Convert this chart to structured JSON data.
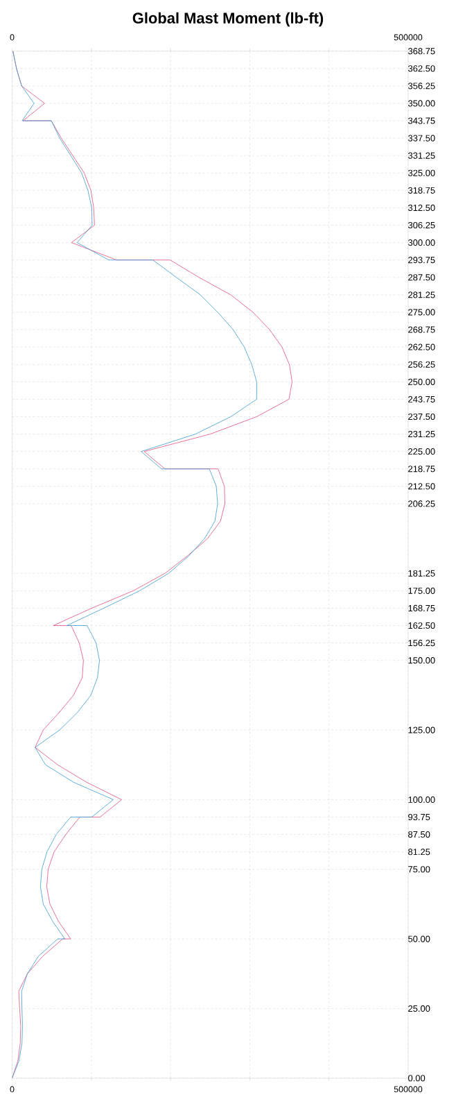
{
  "chart_data": {
    "type": "line",
    "title": "Global Mast Moment (lb-ft)",
    "xlim": [
      0,
      500000
    ],
    "xticks": [
      0,
      {
        "value": 100000,
        "label": null
      },
      {
        "value": 200000,
        "label": null
      },
      {
        "value": 300000,
        "label": null
      },
      {
        "value": 400000,
        "label": null
      },
      500000
    ],
    "x2lim": [
      0,
      500000
    ],
    "x2ticks": [
      0,
      {
        "value": 100000,
        "label": null
      },
      {
        "value": 200000,
        "label": null
      },
      {
        "value": 300000,
        "label": null
      },
      {
        "value": 400000,
        "label": null
      },
      500000
    ],
    "ylim": [
      0,
      368.75
    ],
    "yticks": [
      {
        "value": 368.75,
        "label": "368.75"
      },
      {
        "value": 362.5,
        "label": "362.50"
      },
      {
        "value": 356.25,
        "label": "356.25"
      },
      {
        "value": 350,
        "label": "350.00"
      },
      {
        "value": 343.75,
        "label": "343.75"
      },
      {
        "value": 337.5,
        "label": "337.50"
      },
      {
        "value": 331.25,
        "label": "331.25"
      },
      {
        "value": 325,
        "label": "325.00"
      },
      {
        "value": 318.75,
        "label": "318.75"
      },
      {
        "value": 312.5,
        "label": "312.50"
      },
      {
        "value": 306.25,
        "label": "306.25"
      },
      {
        "value": 300,
        "label": "300.00"
      },
      {
        "value": 293.75,
        "label": "293.75"
      },
      {
        "value": 287.5,
        "label": "287.50"
      },
      {
        "value": 281.25,
        "label": "281.25"
      },
      {
        "value": 275,
        "label": "275.00"
      },
      {
        "value": 268.75,
        "label": "268.75"
      },
      {
        "value": 262.5,
        "label": "262.50"
      },
      {
        "value": 256.25,
        "label": "256.25"
      },
      {
        "value": 250,
        "label": "250.00"
      },
      {
        "value": 243.75,
        "label": "243.75"
      },
      {
        "value": 237.5,
        "label": "237.50"
      },
      {
        "value": 231.25,
        "label": "231.25"
      },
      {
        "value": 225,
        "label": "225.00"
      },
      {
        "value": 218.75,
        "label": "218.75"
      },
      {
        "value": 212.5,
        "label": "212.50"
      },
      {
        "value": 206.25,
        "label": "206.25"
      },
      {
        "value": 181.25,
        "label": "181.25"
      },
      {
        "value": 175,
        "label": "175.00"
      },
      {
        "value": 168.75,
        "label": "168.75"
      },
      {
        "value": 162.5,
        "label": "162.50"
      },
      {
        "value": 156.25,
        "label": "156.25"
      },
      {
        "value": 150,
        "label": "150.00"
      },
      {
        "value": 125,
        "label": "125.00"
      },
      {
        "value": 100,
        "label": "100.00"
      },
      {
        "value": 93.75,
        "label": "93.75"
      },
      {
        "value": 87.5,
        "label": "87.50"
      },
      {
        "value": 81.25,
        "label": "81.25"
      },
      {
        "value": 75,
        "label": "75.00"
      },
      {
        "value": 50,
        "label": "50.00"
      },
      {
        "value": 25,
        "label": "25.00"
      },
      {
        "value": 0,
        "label": "0.00"
      }
    ],
    "grid": true,
    "series": [
      {
        "color": "#e0507e",
        "x": [
          1000,
          5500,
          12000,
          41000,
          13800,
          49500,
          62000,
          76500,
          91000,
          99400,
          103000,
          104000,
          75000,
          132000,
          199500,
          236000,
          276000,
          304000,
          325000,
          340700,
          350000,
          353500,
          349500,
          308700,
          250000,
          166700,
          193000,
          260000,
          268000,
          268600,
          263000,
          246800,
          221300,
          193000,
          153000,
          100500,
          52000,
          74600,
          84800,
          90000,
          88500,
          77500,
          59300,
          39300,
          29000,
          57500,
          94000,
          138300,
          111000,
          85500,
          67700,
          53000,
          45500,
          43700,
          47700,
          58600,
          73900,
          63700,
          38600,
          19300,
          8400,
          9500,
          10900,
          10200,
          7300,
          0
        ],
        "values": [
          368.75,
          362.5,
          356.25,
          350,
          343.75,
          343.75,
          337.5,
          331.25,
          325,
          318.75,
          312.5,
          306.25,
          300,
          293.75,
          293.75,
          287.5,
          281.25,
          275,
          268.75,
          262.5,
          256.25,
          250,
          243.75,
          237.5,
          231.25,
          225,
          218.75,
          218.75,
          212.5,
          206.25,
          200,
          193.75,
          187.5,
          181.25,
          175,
          168.75,
          162.5,
          162.5,
          156.25,
          150,
          143.75,
          137.5,
          131.25,
          125,
          118.75,
          112.5,
          106.25,
          100,
          93.75,
          93.75,
          87.5,
          81.25,
          75,
          68.75,
          62.5,
          56.25,
          50,
          50,
          43.75,
          37.5,
          31.25,
          25,
          18.75,
          12.5,
          6.25,
          0
        ]
      },
      {
        "color": "#3c9ad6",
        "x": [
          1000,
          5500,
          12000,
          27700,
          12700,
          49500,
          60000,
          74000,
          87700,
          95700,
          100500,
          101000,
          82000,
          122000,
          177600,
          207500,
          237700,
          259500,
          279000,
          293000,
          302500,
          308700,
          308700,
          276000,
          231500,
          163000,
          188500,
          249000,
          257700,
          259500,
          256000,
          243000,
          223000,
          197600,
          161000,
          115700,
          69000,
          94600,
          106000,
          110300,
          107700,
          99400,
          82300,
          60000,
          29000,
          42200,
          77500,
          127800,
          100500,
          73900,
          55700,
          44000,
          37500,
          35700,
          39300,
          51300,
          66600,
          57500,
          33100,
          19300,
          12000,
          12400,
          13100,
          12400,
          8700,
          0
        ],
        "values": [
          368.75,
          362.5,
          356.25,
          350,
          343.75,
          343.75,
          337.5,
          331.25,
          325,
          318.75,
          312.5,
          306.25,
          300,
          293.75,
          293.75,
          287.5,
          281.25,
          275,
          268.75,
          262.5,
          256.25,
          250,
          243.75,
          237.5,
          231.25,
          225,
          218.75,
          218.75,
          212.5,
          206.25,
          200,
          193.75,
          187.5,
          181.25,
          175,
          168.75,
          162.5,
          162.5,
          156.25,
          150,
          143.75,
          137.5,
          131.25,
          125,
          118.75,
          112.5,
          106.25,
          100,
          93.75,
          93.75,
          87.5,
          81.25,
          75,
          68.75,
          62.5,
          56.25,
          50,
          50,
          43.75,
          37.5,
          31.25,
          25,
          18.75,
          12.5,
          6.25,
          0
        ]
      }
    ]
  }
}
